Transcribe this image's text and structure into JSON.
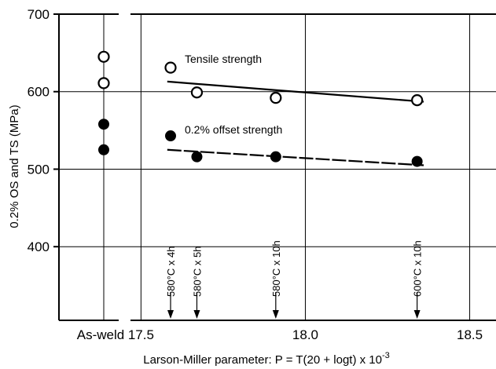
{
  "chart_data": {
    "type": "scatter",
    "title": "",
    "xlabel": "Larson-Miller parameter: P = T(20 + logt) x 10",
    "xlabel_exponent": "-3",
    "ylabel": "0.2% OS and TS (MPa)",
    "x_ticks": [
      "17.5",
      "18.0",
      "18.5"
    ],
    "x_break_label": "As-weld",
    "xlim": [
      17.48,
      18.58
    ],
    "ylim": [
      305,
      700
    ],
    "y_ticks": [
      400,
      500,
      600,
      700
    ],
    "grid": true,
    "series": [
      {
        "name": "Tensile strength",
        "marker": "open-circle",
        "as_weld_values": [
          645,
          611
        ],
        "points": [
          {
            "x": 17.59,
            "y": 631
          },
          {
            "x": 17.67,
            "y": 599
          },
          {
            "x": 17.91,
            "y": 592
          },
          {
            "x": 18.34,
            "y": 589
          }
        ],
        "trendline": {
          "x": [
            17.58,
            18.36
          ],
          "y": [
            613,
            587
          ],
          "style": "solid"
        }
      },
      {
        "name": "0.2% offset strength",
        "marker": "filled-circle",
        "as_weld_values": [
          558,
          525
        ],
        "points": [
          {
            "x": 17.59,
            "y": 543
          },
          {
            "x": 17.67,
            "y": 516
          },
          {
            "x": 17.91,
            "y": 516
          },
          {
            "x": 18.34,
            "y": 510
          }
        ],
        "trendline": {
          "x": [
            17.58,
            18.36
          ],
          "y": [
            525,
            505
          ],
          "style": "dashed"
        }
      }
    ],
    "conditions": [
      {
        "label": "580°C x 4h",
        "x": 17.59
      },
      {
        "label": "580°C x 5h",
        "x": 17.67
      },
      {
        "label": "580°C x 10h",
        "x": 17.91
      },
      {
        "label": "600°C x 10h",
        "x": 18.34
      }
    ],
    "colors": {
      "ink": "#000000",
      "background": "#ffffff"
    }
  }
}
